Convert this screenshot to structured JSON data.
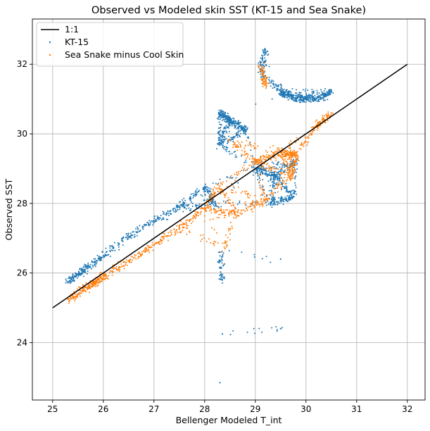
{
  "chart_data": {
    "type": "scatter",
    "title": "Observed vs Modeled skin SST (KT-15 and Sea Snake)",
    "xlabel": "Bellenger Modeled T_int",
    "ylabel": "Observed SST",
    "xlim": [
      24.6,
      32.35
    ],
    "ylim": [
      22.35,
      33.3
    ],
    "xticks": [
      25,
      26,
      27,
      28,
      29,
      30,
      31,
      32
    ],
    "yticks": [
      24,
      26,
      28,
      30,
      32
    ],
    "grid": true,
    "legend_position": "top-left",
    "reference_line": {
      "name": "1:1",
      "x": [
        25,
        32
      ],
      "y": [
        25,
        32
      ],
      "color": "#000000"
    },
    "series": [
      {
        "name": "KT-15",
        "color": "#1f77b4",
        "description_points": [
          [
            25.3,
            25.75
          ],
          [
            25.6,
            26.05
          ],
          [
            26.0,
            26.5
          ],
          [
            26.5,
            27.05
          ],
          [
            27.0,
            27.5
          ],
          [
            27.5,
            27.9
          ],
          [
            28.0,
            28.45
          ],
          [
            28.3,
            29.7
          ],
          [
            28.3,
            30.6
          ],
          [
            28.5,
            30.4
          ],
          [
            28.8,
            30.1
          ],
          [
            29.1,
            31.8
          ],
          [
            29.2,
            32.4
          ],
          [
            29.5,
            31.2
          ],
          [
            29.8,
            31.0
          ],
          [
            30.2,
            31.0
          ],
          [
            30.5,
            31.2
          ],
          [
            29.0,
            29.0
          ],
          [
            29.4,
            28.8
          ],
          [
            29.8,
            29.2
          ],
          [
            28.3,
            26.6
          ],
          [
            28.35,
            25.8
          ],
          [
            28.3,
            22.85
          ],
          [
            28.35,
            24.25
          ],
          [
            29.5,
            24.4
          ],
          [
            29.5,
            26.4
          ],
          [
            29.75,
            28.2
          ],
          [
            28.2,
            28.0
          ],
          [
            29.3,
            28.0
          ]
        ]
      },
      {
        "name": "Sea Snake minus Cool Skin",
        "color": "#ff7f0e",
        "description_points": [
          [
            25.3,
            25.25
          ],
          [
            25.7,
            25.6
          ],
          [
            26.0,
            25.9
          ],
          [
            26.5,
            26.35
          ],
          [
            27.0,
            26.8
          ],
          [
            27.5,
            27.3
          ],
          [
            28.0,
            27.85
          ],
          [
            28.3,
            28.5
          ],
          [
            28.5,
            29.8
          ],
          [
            29.1,
            31.95
          ],
          [
            29.2,
            31.4
          ],
          [
            29.0,
            29.2
          ],
          [
            29.5,
            29.5
          ],
          [
            29.8,
            29.4
          ],
          [
            30.2,
            30.2
          ],
          [
            30.5,
            30.6
          ],
          [
            28.4,
            26.7
          ],
          [
            28.6,
            27.7
          ],
          [
            29.2,
            28.1
          ],
          [
            29.7,
            28.8
          ]
        ]
      }
    ]
  }
}
